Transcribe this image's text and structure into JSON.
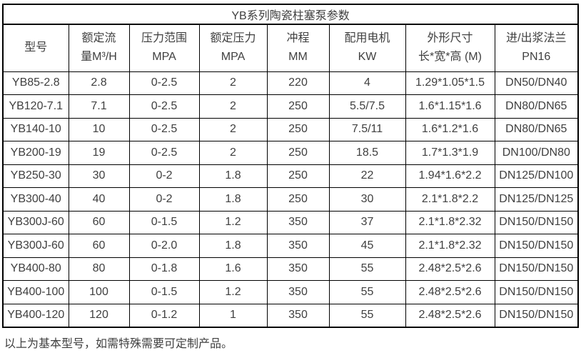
{
  "table": {
    "title": "YB系列陶瓷柱塞泵参数",
    "columns": [
      {
        "line1": "型号",
        "line2": ""
      },
      {
        "line1": "额定流",
        "line2": "量M³/H"
      },
      {
        "line1": "压力范围",
        "line2": "MPA"
      },
      {
        "line1": "额定压力",
        "line2": "MPA"
      },
      {
        "line1": "冲程",
        "line2": "MM"
      },
      {
        "line1": "配用电机",
        "line2": "KW"
      },
      {
        "line1": "外形尺寸",
        "line2": "长*宽*高 (M)"
      },
      {
        "line1": "进/出浆法兰",
        "line2": "PN16"
      }
    ],
    "rows": [
      [
        "YB85-2.8",
        "2.8",
        "0-2.5",
        "2",
        "220",
        "4",
        "1.29*1.05*1.5",
        "DN50/DN40"
      ],
      [
        "YB120-7.1",
        "7.1",
        "0-2.5",
        "2",
        "250",
        "5.5/7.5",
        "1.6*1.15*1.6",
        "DN80/DN65"
      ],
      [
        "YB140-10",
        "10",
        "0-2.5",
        "2",
        "250",
        "7.5/11",
        "1.6*1.2*1.6",
        "DN80/DN65"
      ],
      [
        "YB200-19",
        "19",
        "0-2.5",
        "2",
        "250",
        "18.5",
        "1.7*1.3*1.9",
        "DN100/DN80"
      ],
      [
        "YB250-30",
        "30",
        "0-2",
        "1.8",
        "250",
        "22",
        "1.94*1.6*2.2",
        "DN125/DN100"
      ],
      [
        "YB300-40",
        "40",
        "0-2",
        "1.8",
        "250",
        "30",
        "2.1*1.8*2.2",
        "DN125/DN125"
      ],
      [
        "YB300J-60",
        "60",
        "0-1.5",
        "1.2",
        "350",
        "37",
        "2.1*1.8*2.32",
        "DN150/DN150"
      ],
      [
        "YB300J-60",
        "60",
        "0-2.0",
        "1.8",
        "350",
        "45",
        "2.1*1.8*2.32",
        "DN150/DN150"
      ],
      [
        "YB400-80",
        "80",
        "0-1.8",
        "1.6",
        "350",
        "55",
        "2.48*2.5*2.6",
        "DN150/DN150"
      ],
      [
        "YB400-100",
        "100",
        "0-1.5",
        "1.2",
        "350",
        "55",
        "2.48*2.5*2.6",
        "DN150/DN150"
      ],
      [
        "YB400-120",
        "120",
        "0-1.2",
        "1",
        "350",
        "55",
        "2.48*2.5*2.6",
        "DN150/DN150"
      ]
    ],
    "footer_note": "以上为基本型号，如需特殊需要可定制产品。"
  },
  "colors": {
    "border": "#000000",
    "text": "#3f3f3f",
    "background": "#ffffff"
  }
}
